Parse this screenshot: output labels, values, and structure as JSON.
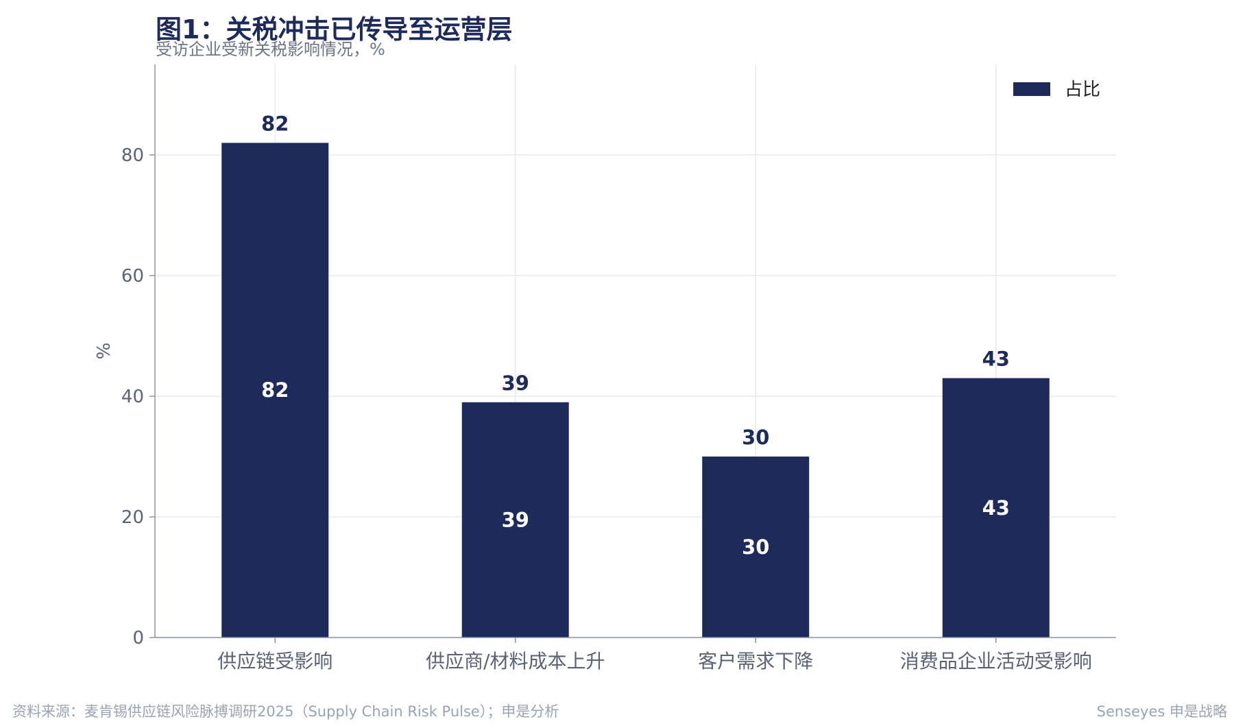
{
  "title": "图1：关税冲击已传导至运营层",
  "subtitle": "受访企业受新关税影响情况，%",
  "footer": {
    "source": "资料来源：麦肯锡供应链风险脉搏调研2025（Supply Chain Risk Pulse）；申是分析",
    "brand": "Senseyes 申是战略"
  },
  "colors": {
    "bar": "#1e2a5a",
    "grid": "#e6e8ef",
    "axis": "#8a92a6",
    "tick_text": "#5a6275",
    "label_outside": "#1e2a5a",
    "label_inside": "#ffffff"
  },
  "chart_data": {
    "type": "bar",
    "categories": [
      "供应链受影响",
      "供应商/材料成本上升",
      "客户需求下降",
      "消费品企业活动受影响"
    ],
    "series": [
      {
        "name": "占比",
        "values": [
          82,
          39,
          30,
          43
        ]
      }
    ],
    "ylabel": "%",
    "ylim": [
      0,
      95
    ],
    "yticks": [
      0,
      20,
      40,
      60,
      80
    ],
    "grid": true,
    "legend_position": "top-right",
    "data_labels": "above-and-inside"
  }
}
